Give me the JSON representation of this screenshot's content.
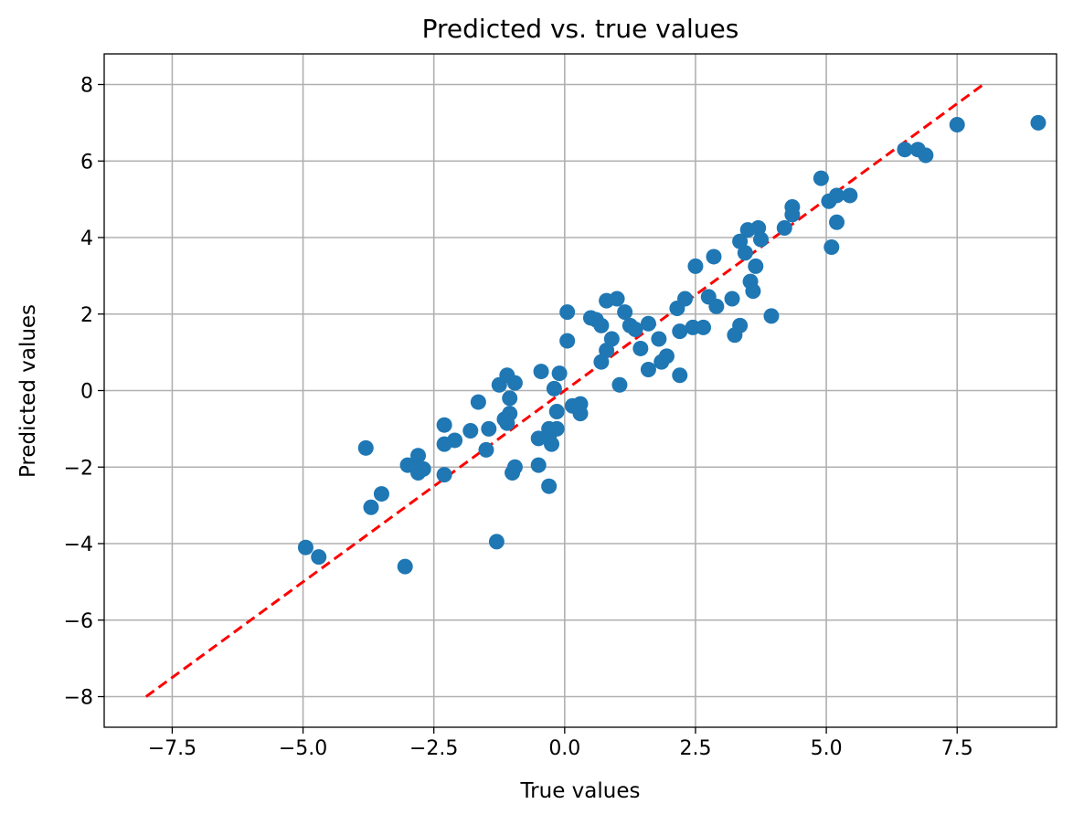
{
  "chart_data": {
    "type": "scatter",
    "title": "Predicted vs. true values",
    "xlabel": "True values",
    "ylabel": "Predicted values",
    "xlim": [
      -8.8,
      9.4
    ],
    "ylim": [
      -8.8,
      8.8
    ],
    "grid": true,
    "xticks": [
      -7.5,
      -5.0,
      -2.5,
      0.0,
      2.5,
      5.0,
      7.5
    ],
    "xtick_labels": [
      "−7.5",
      "−5.0",
      "−2.5",
      "0.0",
      "2.5",
      "5.0",
      "7.5"
    ],
    "yticks": [
      -8,
      -6,
      -4,
      -2,
      0,
      2,
      4,
      6,
      8
    ],
    "ytick_labels": [
      "−8",
      "−6",
      "−4",
      "−2",
      "0",
      "2",
      "4",
      "6",
      "8"
    ],
    "colors": {
      "points": "#1f77b4",
      "reference_line": "#ff0000",
      "grid": "#b0b0b0"
    },
    "reference_line": {
      "style": "dashed",
      "x": [
        -8,
        8
      ],
      "y": [
        -8,
        8
      ]
    },
    "series": [
      {
        "points": [
          [
            -4.95,
            -4.1
          ],
          [
            -4.7,
            -4.35
          ],
          [
            -3.8,
            -1.5
          ],
          [
            -3.7,
            -3.05
          ],
          [
            -3.5,
            -2.7
          ],
          [
            -3.05,
            -4.6
          ],
          [
            -3.0,
            -1.95
          ],
          [
            -2.85,
            -1.95
          ],
          [
            -2.8,
            -1.7
          ],
          [
            -2.8,
            -2.15
          ],
          [
            -2.7,
            -2.05
          ],
          [
            -2.3,
            -0.9
          ],
          [
            -2.3,
            -1.4
          ],
          [
            -2.3,
            -2.2
          ],
          [
            -2.1,
            -1.3
          ],
          [
            -1.8,
            -1.05
          ],
          [
            -1.65,
            -0.3
          ],
          [
            -1.5,
            -1.55
          ],
          [
            -1.45,
            -1.0
          ],
          [
            -1.3,
            -3.95
          ],
          [
            -1.25,
            0.15
          ],
          [
            -1.15,
            -0.75
          ],
          [
            -1.1,
            0.4
          ],
          [
            -1.1,
            -0.85
          ],
          [
            -1.05,
            -0.6
          ],
          [
            -1.05,
            -0.2
          ],
          [
            -1.0,
            -2.15
          ],
          [
            -0.95,
            -2.0
          ],
          [
            -0.95,
            0.2
          ],
          [
            -0.5,
            -1.25
          ],
          [
            -0.5,
            -1.95
          ],
          [
            -0.45,
            0.5
          ],
          [
            -0.3,
            -1.2
          ],
          [
            -0.3,
            -1.0
          ],
          [
            -0.3,
            -2.5
          ],
          [
            -0.25,
            -1.4
          ],
          [
            -0.2,
            0.05
          ],
          [
            -0.15,
            -0.55
          ],
          [
            -0.15,
            -1.0
          ],
          [
            -0.1,
            0.45
          ],
          [
            0.05,
            2.05
          ],
          [
            0.05,
            1.3
          ],
          [
            0.15,
            -0.4
          ],
          [
            0.3,
            -0.35
          ],
          [
            0.3,
            -0.6
          ],
          [
            0.5,
            1.9
          ],
          [
            0.6,
            1.85
          ],
          [
            0.7,
            1.7
          ],
          [
            0.7,
            0.75
          ],
          [
            0.8,
            1.05
          ],
          [
            0.8,
            2.35
          ],
          [
            0.9,
            1.35
          ],
          [
            1.0,
            2.4
          ],
          [
            1.05,
            0.15
          ],
          [
            1.15,
            2.05
          ],
          [
            1.25,
            1.7
          ],
          [
            1.35,
            1.6
          ],
          [
            1.45,
            1.1
          ],
          [
            1.6,
            1.75
          ],
          [
            1.6,
            0.55
          ],
          [
            1.8,
            1.35
          ],
          [
            1.85,
            0.75
          ],
          [
            1.95,
            0.9
          ],
          [
            2.15,
            2.15
          ],
          [
            2.2,
            1.55
          ],
          [
            2.2,
            0.4
          ],
          [
            2.3,
            2.4
          ],
          [
            2.45,
            1.65
          ],
          [
            2.5,
            3.25
          ],
          [
            2.65,
            1.65
          ],
          [
            2.75,
            2.45
          ],
          [
            2.85,
            3.5
          ],
          [
            2.9,
            2.2
          ],
          [
            3.2,
            2.4
          ],
          [
            3.25,
            1.45
          ],
          [
            3.35,
            3.9
          ],
          [
            3.35,
            1.7
          ],
          [
            3.45,
            3.6
          ],
          [
            3.5,
            4.2
          ],
          [
            3.55,
            2.85
          ],
          [
            3.6,
            2.6
          ],
          [
            3.65,
            3.25
          ],
          [
            3.7,
            4.25
          ],
          [
            3.75,
            3.95
          ],
          [
            3.95,
            1.95
          ],
          [
            4.2,
            4.25
          ],
          [
            4.35,
            4.8
          ],
          [
            4.35,
            4.6
          ],
          [
            4.9,
            5.55
          ],
          [
            5.05,
            4.95
          ],
          [
            5.1,
            3.75
          ],
          [
            5.2,
            5.1
          ],
          [
            5.2,
            4.4
          ],
          [
            5.45,
            5.1
          ],
          [
            6.5,
            6.3
          ],
          [
            6.75,
            6.3
          ],
          [
            6.9,
            6.15
          ],
          [
            7.5,
            6.95
          ],
          [
            9.05,
            7.0
          ]
        ]
      }
    ]
  }
}
